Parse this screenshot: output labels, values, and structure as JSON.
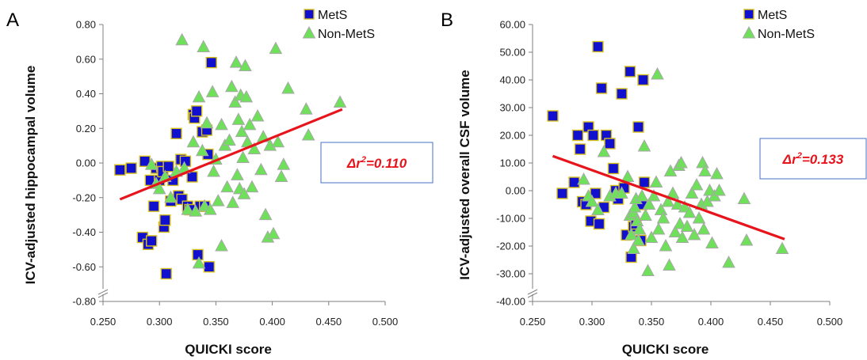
{
  "chart_data": [
    {
      "panel": "A",
      "type": "scatter",
      "title": "",
      "xlabel": "QUICKI score",
      "ylabel": "ICV-adjusted hippocampal volume",
      "xlim": [
        0.25,
        0.5
      ],
      "ylim": [
        -0.8,
        0.8
      ],
      "x_ticks": [
        "0.250",
        "0.300",
        "0.350",
        "0.400",
        "0.450",
        "0.500"
      ],
      "y_ticks": [
        "-0.80",
        "-0.60",
        "-0.40",
        "-0.20",
        "0.00",
        "0.20",
        "0.40",
        "0.60",
        "0.80"
      ],
      "axis_break": true,
      "grid": false,
      "legend_position": "top-right",
      "annotation": {
        "prefix": "Δr",
        "sup": "2",
        "suffix": "=0.110",
        "color": "#e8141c",
        "box_color": "#4472c4"
      },
      "trendline": {
        "x": [
          0.265,
          0.462
        ],
        "y": [
          -0.21,
          0.31
        ],
        "color": "#e8141c"
      },
      "series": [
        {
          "name": "MetS",
          "marker": "square",
          "fill": "#1010ce",
          "edge": "#d8c21a",
          "points": [
            [
              0.265,
              -0.04
            ],
            [
              0.275,
              -0.03
            ],
            [
              0.285,
              -0.43
            ],
            [
              0.287,
              0.01
            ],
            [
              0.29,
              -0.47
            ],
            [
              0.293,
              -0.45
            ],
            [
              0.292,
              -0.1
            ],
            [
              0.295,
              -0.25
            ],
            [
              0.297,
              -0.03
            ],
            [
              0.3,
              -0.1
            ],
            [
              0.302,
              -0.02
            ],
            [
              0.303,
              -0.05
            ],
            [
              0.304,
              -0.37
            ],
            [
              0.305,
              -0.33
            ],
            [
              0.306,
              -0.64
            ],
            [
              0.308,
              -0.02
            ],
            [
              0.31,
              -0.22
            ],
            [
              0.312,
              -0.1
            ],
            [
              0.315,
              0.17
            ],
            [
              0.317,
              -0.19
            ],
            [
              0.319,
              0.02
            ],
            [
              0.32,
              -0.21
            ],
            [
              0.323,
              0.01
            ],
            [
              0.325,
              -0.25
            ],
            [
              0.327,
              -0.27
            ],
            [
              0.329,
              -0.08
            ],
            [
              0.33,
              0.28
            ],
            [
              0.331,
              0.26
            ],
            [
              0.333,
              0.3
            ],
            [
              0.334,
              -0.53
            ],
            [
              0.336,
              -0.25
            ],
            [
              0.338,
              0.18
            ],
            [
              0.34,
              -0.25
            ],
            [
              0.342,
              0.19
            ],
            [
              0.343,
              0.05
            ],
            [
              0.344,
              -0.6
            ],
            [
              0.346,
              0.58
            ]
          ]
        },
        {
          "name": "Non-MetS",
          "marker": "triangle",
          "fill": "#6fe05a",
          "edge": "#a8a8a8",
          "points": [
            [
              0.293,
              -0.01
            ],
            [
              0.297,
              -0.12
            ],
            [
              0.3,
              -0.15
            ],
            [
              0.305,
              -0.08
            ],
            [
              0.31,
              -0.2
            ],
            [
              0.315,
              -0.05
            ],
            [
              0.32,
              0.71
            ],
            [
              0.322,
              -0.03
            ],
            [
              0.325,
              -0.27
            ],
            [
              0.33,
              0.12
            ],
            [
              0.332,
              -0.28
            ],
            [
              0.335,
              0.38
            ],
            [
              0.335,
              -0.58
            ],
            [
              0.338,
              0.07
            ],
            [
              0.339,
              0.67
            ],
            [
              0.34,
              -0.25
            ],
            [
              0.342,
              0.23
            ],
            [
              0.345,
              -0.27
            ],
            [
              0.347,
              0.41
            ],
            [
              0.348,
              -0.05
            ],
            [
              0.35,
              0.02
            ],
            [
              0.352,
              -0.22
            ],
            [
              0.355,
              0.22
            ],
            [
              0.355,
              -0.48
            ],
            [
              0.358,
              0.1
            ],
            [
              0.36,
              -0.14
            ],
            [
              0.362,
              0.13
            ],
            [
              0.364,
              0.44
            ],
            [
              0.365,
              -0.23
            ],
            [
              0.367,
              0.35
            ],
            [
              0.368,
              0.58
            ],
            [
              0.369,
              -0.07
            ],
            [
              0.37,
              0.25
            ],
            [
              0.371,
              -0.15
            ],
            [
              0.372,
              0.39
            ],
            [
              0.373,
              0.18
            ],
            [
              0.374,
              0.03
            ],
            [
              0.375,
              -0.18
            ],
            [
              0.376,
              0.56
            ],
            [
              0.377,
              0.38
            ],
            [
              0.378,
              0.12
            ],
            [
              0.38,
              0.22
            ],
            [
              0.382,
              -0.14
            ],
            [
              0.384,
              0.08
            ],
            [
              0.387,
              0.27
            ],
            [
              0.39,
              -0.04
            ],
            [
              0.392,
              0.15
            ],
            [
              0.394,
              -0.3
            ],
            [
              0.396,
              -0.43
            ],
            [
              0.398,
              0.1
            ],
            [
              0.401,
              -0.41
            ],
            [
              0.403,
              0.66
            ],
            [
              0.405,
              0.12
            ],
            [
              0.408,
              -0.08
            ],
            [
              0.41,
              -0.01
            ],
            [
              0.414,
              0.43
            ],
            [
              0.43,
              0.31
            ],
            [
              0.432,
              0.16
            ],
            [
              0.46,
              0.35
            ]
          ]
        }
      ]
    },
    {
      "panel": "B",
      "type": "scatter",
      "title": "",
      "xlabel": "QUICKI score",
      "ylabel": "ICV-adjusted overall CSF volume",
      "xlim": [
        0.25,
        0.5
      ],
      "ylim": [
        -40,
        60
      ],
      "x_ticks": [
        "0.250",
        "0.300",
        "0.350",
        "0.400",
        "0.450",
        "0.500"
      ],
      "y_ticks": [
        "-40.00",
        "-30.00",
        "-20.00",
        "-10.00",
        "0.00",
        "10.00",
        "20.00",
        "30.00",
        "40.00",
        "50.00",
        "60.00"
      ],
      "axis_break": true,
      "grid": false,
      "legend_position": "top-right",
      "annotation": {
        "prefix": "Δr",
        "sup": "2",
        "suffix": "=0.133",
        "color": "#e8141c",
        "box_color": "#4472c4"
      },
      "trendline": {
        "x": [
          0.267,
          0.462
        ],
        "y": [
          12.5,
          -17.5
        ],
        "color": "#e8141c"
      },
      "series": [
        {
          "name": "MetS",
          "marker": "square",
          "fill": "#1010ce",
          "edge": "#d8c21a",
          "points": [
            [
              0.267,
              27
            ],
            [
              0.275,
              -1
            ],
            [
              0.285,
              3
            ],
            [
              0.288,
              20
            ],
            [
              0.29,
              15
            ],
            [
              0.292,
              -4
            ],
            [
              0.295,
              -5
            ],
            [
              0.297,
              23
            ],
            [
              0.299,
              -11
            ],
            [
              0.301,
              20
            ],
            [
              0.303,
              -1
            ],
            [
              0.305,
              52
            ],
            [
              0.306,
              -12
            ],
            [
              0.308,
              37
            ],
            [
              0.31,
              -6
            ],
            [
              0.312,
              20
            ],
            [
              0.315,
              17
            ],
            [
              0.318,
              8
            ],
            [
              0.32,
              0
            ],
            [
              0.322,
              -3
            ],
            [
              0.325,
              35
            ],
            [
              0.327,
              1
            ],
            [
              0.329,
              -16
            ],
            [
              0.332,
              43
            ],
            [
              0.333,
              -24
            ],
            [
              0.335,
              -13
            ],
            [
              0.337,
              -12
            ],
            [
              0.339,
              23
            ],
            [
              0.341,
              -18
            ],
            [
              0.342,
              -5
            ],
            [
              0.343,
              40
            ],
            [
              0.344,
              3
            ]
          ]
        },
        {
          "name": "Non-MetS",
          "marker": "triangle",
          "fill": "#6fe05a",
          "edge": "#a8a8a8",
          "points": [
            [
              0.293,
              4
            ],
            [
              0.297,
              -2
            ],
            [
              0.3,
              -4
            ],
            [
              0.305,
              -7
            ],
            [
              0.31,
              14
            ],
            [
              0.315,
              -2
            ],
            [
              0.32,
              -1
            ],
            [
              0.325,
              -1
            ],
            [
              0.33,
              5
            ],
            [
              0.332,
              -9
            ],
            [
              0.333,
              -16
            ],
            [
              0.335,
              -8
            ],
            [
              0.335,
              -21
            ],
            [
              0.336,
              -6
            ],
            [
              0.337,
              -3
            ],
            [
              0.338,
              -11
            ],
            [
              0.339,
              -18
            ],
            [
              0.34,
              -14
            ],
            [
              0.342,
              -2
            ],
            [
              0.344,
              16
            ],
            [
              0.345,
              -9
            ],
            [
              0.347,
              -29
            ],
            [
              0.348,
              -5
            ],
            [
              0.35,
              -17
            ],
            [
              0.352,
              -2
            ],
            [
              0.354,
              3
            ],
            [
              0.355,
              42
            ],
            [
              0.356,
              -14
            ],
            [
              0.358,
              -7
            ],
            [
              0.36,
              -10
            ],
            [
              0.362,
              -20
            ],
            [
              0.364,
              -4
            ],
            [
              0.365,
              -27
            ],
            [
              0.366,
              7
            ],
            [
              0.368,
              -1
            ],
            [
              0.37,
              -15
            ],
            [
              0.372,
              -5
            ],
            [
              0.373,
              9
            ],
            [
              0.374,
              -12
            ],
            [
              0.375,
              10
            ],
            [
              0.376,
              -17
            ],
            [
              0.378,
              -6
            ],
            [
              0.38,
              -13
            ],
            [
              0.382,
              -8
            ],
            [
              0.384,
              -1
            ],
            [
              0.386,
              -16
            ],
            [
              0.388,
              2
            ],
            [
              0.39,
              -10
            ],
            [
              0.392,
              -5
            ],
            [
              0.393,
              10
            ],
            [
              0.394,
              -14
            ],
            [
              0.395,
              7
            ],
            [
              0.397,
              -4
            ],
            [
              0.399,
              0
            ],
            [
              0.401,
              -19
            ],
            [
              0.403,
              -2
            ],
            [
              0.405,
              6
            ],
            [
              0.407,
              0
            ],
            [
              0.415,
              -26
            ],
            [
              0.428,
              -3
            ],
            [
              0.43,
              -18
            ],
            [
              0.46,
              -21
            ]
          ]
        }
      ]
    }
  ]
}
